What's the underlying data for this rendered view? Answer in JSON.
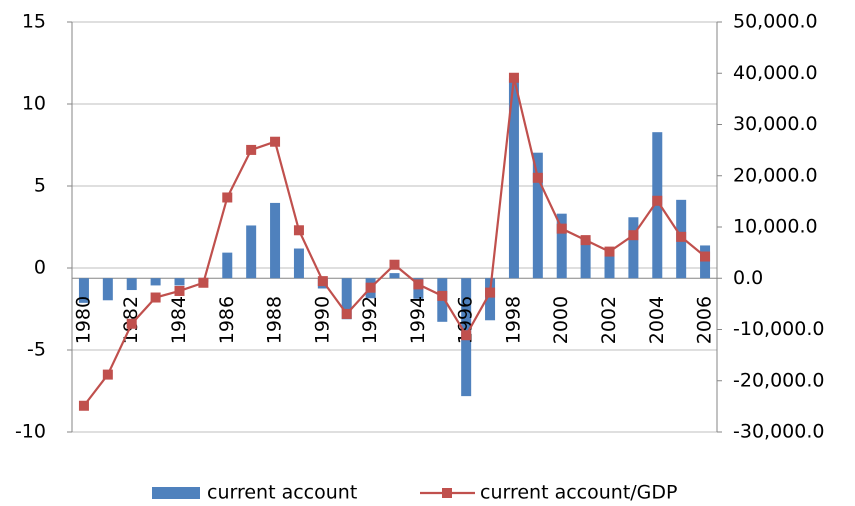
{
  "chart_data": {
    "type": "bar",
    "categories": [
      "1980",
      null,
      "1982",
      null,
      "1984",
      null,
      "1986",
      null,
      "1988",
      null,
      "1990",
      null,
      "1992",
      null,
      "1994",
      null,
      "1996",
      null,
      "1998",
      null,
      "2000",
      null,
      "2002",
      null,
      "2004",
      null,
      "2006"
    ],
    "series": [
      {
        "name": "current account",
        "type": "bar",
        "axis": "y2",
        "color": "#4f81bd",
        "values": [
          -4800,
          -4300,
          -2300,
          -1400,
          -1400,
          -800,
          5000,
          10300,
          14700,
          5800,
          -2000,
          -8000,
          -3900,
          1000,
          -4000,
          -8500,
          -23000,
          -8200,
          39000,
          24500,
          12600,
          7700,
          5400,
          11900,
          28500,
          15300,
          6400
        ]
      },
      {
        "name": "current account/GDP",
        "type": "line",
        "axis": "y",
        "color": "#c0504d",
        "values": [
          -8.4,
          -6.5,
          -3.4,
          -1.8,
          -1.4,
          -0.9,
          4.3,
          7.2,
          7.7,
          2.3,
          -0.8,
          -2.8,
          -1.2,
          0.2,
          -1.0,
          -1.7,
          -4.1,
          -1.5,
          11.6,
          5.5,
          2.4,
          1.7,
          1.0,
          2.0,
          4.1,
          1.9,
          0.7
        ]
      }
    ],
    "ylim": [
      -10,
      15
    ],
    "yticks": [
      -10,
      -5,
      0,
      5,
      10,
      15
    ],
    "y2lim": [
      -30000,
      50000
    ],
    "y2ticks": [
      {
        "value": -30000,
        "label": "-30,000.0"
      },
      {
        "value": -20000,
        "label": "-20,000.0"
      },
      {
        "value": -10000,
        "label": "-10,000.0"
      },
      {
        "value": 0,
        "label": "0.0"
      },
      {
        "value": 10000,
        "label": "10,000.0"
      },
      {
        "value": 20000,
        "label": "20,000.0"
      },
      {
        "value": 30000,
        "label": "30,000.0"
      },
      {
        "value": 40000,
        "label": "40,000.0"
      },
      {
        "value": 50000,
        "label": "50,000.0"
      }
    ],
    "grid": true,
    "legend": "bottom"
  }
}
